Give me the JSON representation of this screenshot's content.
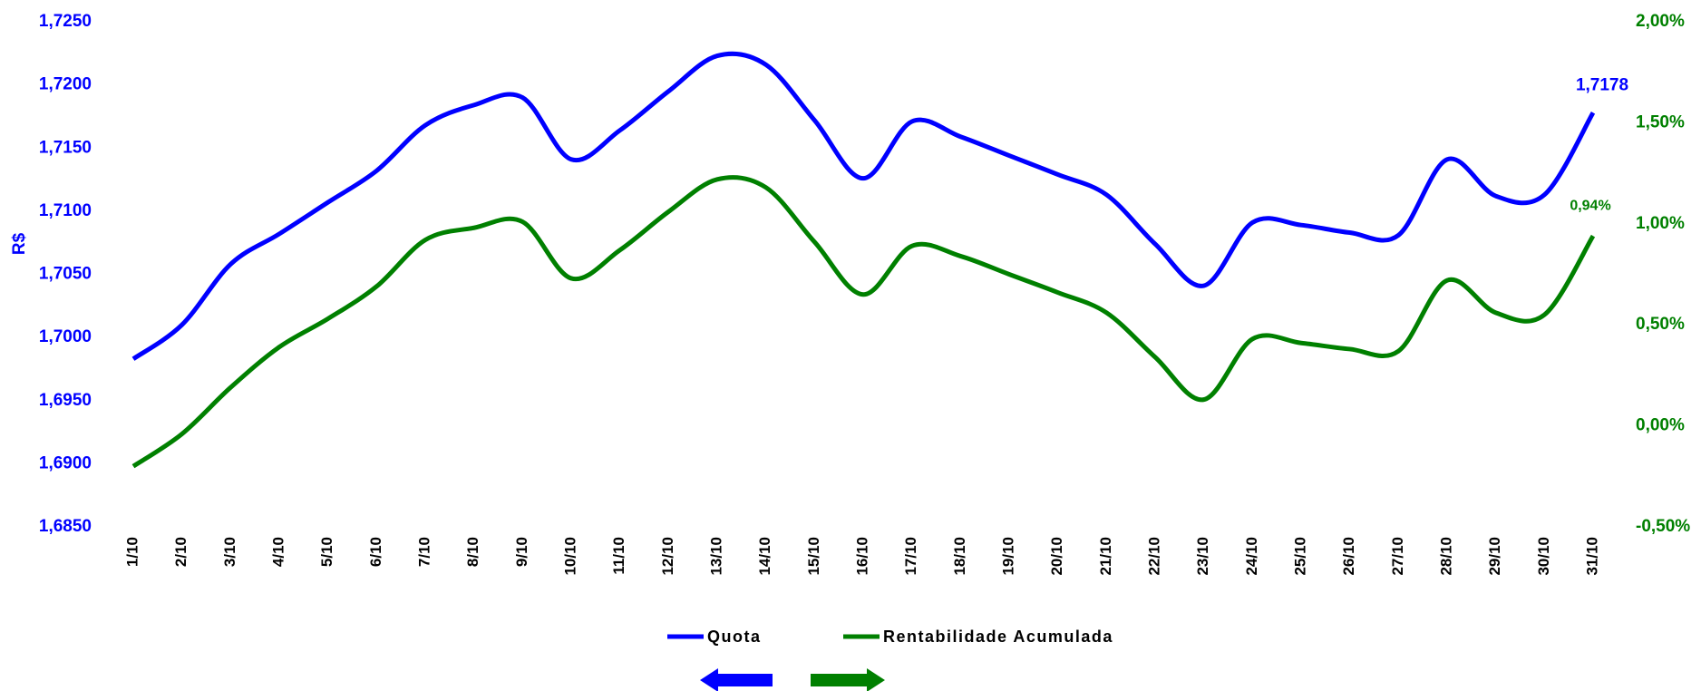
{
  "chart_data": {
    "type": "line",
    "y_label": "R$",
    "categories": [
      "1/10",
      "2/10",
      "3/10",
      "4/10",
      "5/10",
      "6/10",
      "7/10",
      "8/10",
      "9/10",
      "10/10",
      "11/10",
      "12/10",
      "13/10",
      "14/10",
      "15/10",
      "16/10",
      "17/10",
      "18/10",
      "19/10",
      "20/10",
      "21/10",
      "22/10",
      "23/10",
      "24/10",
      "25/10",
      "26/10",
      "27/10",
      "28/10",
      "29/10",
      "30/10",
      "31/10"
    ],
    "series": [
      {
        "name": "Quota",
        "color": "#0000ff",
        "axis": "y",
        "values": [
          1.6983,
          1.701,
          1.7058,
          1.7082,
          1.7107,
          1.7132,
          1.7168,
          1.7184,
          1.719,
          1.7141,
          1.7164,
          1.7195,
          1.7223,
          1.7216,
          1.7172,
          1.7126,
          1.7171,
          1.7159,
          1.7144,
          1.7129,
          1.7113,
          1.7074,
          1.7041,
          1.7091,
          1.7089,
          1.7083,
          1.7081,
          1.7141,
          1.7112,
          1.7113,
          1.7178
        ],
        "value_labels": [
          null,
          null,
          null,
          null,
          null,
          null,
          null,
          null,
          null,
          null,
          null,
          null,
          null,
          null,
          null,
          null,
          null,
          null,
          null,
          null,
          null,
          null,
          null,
          null,
          null,
          null,
          null,
          null,
          null,
          null,
          "1,7178"
        ]
      },
      {
        "name": "Rentabilidade Acumulada",
        "color": "#008000",
        "axis": "y2",
        "values": [
          -0.2,
          -0.04,
          0.19,
          0.39,
          0.53,
          0.69,
          0.92,
          0.98,
          1.01,
          0.73,
          0.87,
          1.06,
          1.22,
          1.18,
          0.91,
          0.65,
          0.89,
          0.84,
          0.75,
          0.66,
          0.56,
          0.34,
          0.13,
          0.43,
          0.41,
          0.38,
          0.37,
          0.72,
          0.56,
          0.55,
          0.94
        ],
        "value_labels": [
          null,
          null,
          null,
          null,
          null,
          null,
          null,
          null,
          null,
          null,
          null,
          null,
          null,
          null,
          null,
          null,
          null,
          null,
          null,
          null,
          null,
          null,
          null,
          null,
          null,
          null,
          null,
          null,
          null,
          null,
          "0,94%"
        ]
      }
    ],
    "ylim": [
      1.685,
      1.725
    ],
    "yticks": [
      {
        "value": 1.685,
        "label": "1,6850"
      },
      {
        "value": 1.69,
        "label": "1,6900"
      },
      {
        "value": 1.695,
        "label": "1,6950"
      },
      {
        "value": 1.7,
        "label": "1,7000"
      },
      {
        "value": 1.705,
        "label": "1,7050"
      },
      {
        "value": 1.71,
        "label": "1,7100"
      },
      {
        "value": 1.715,
        "label": "1,7150"
      },
      {
        "value": 1.72,
        "label": "1,7200"
      },
      {
        "value": 1.725,
        "label": "1,7250"
      }
    ],
    "y2lim": [
      -0.5,
      2.0
    ],
    "y2ticks": [
      {
        "value": -0.5,
        "label": "-0,50%"
      },
      {
        "value": 0,
        "label": "0,00%"
      },
      {
        "value": 0.5,
        "label": "0,50%"
      },
      {
        "value": 1.0,
        "label": "1,00%"
      },
      {
        "value": 1.5,
        "label": "1,50%"
      },
      {
        "value": 2.0,
        "label": "2,00%"
      }
    ],
    "grid": false
  }
}
